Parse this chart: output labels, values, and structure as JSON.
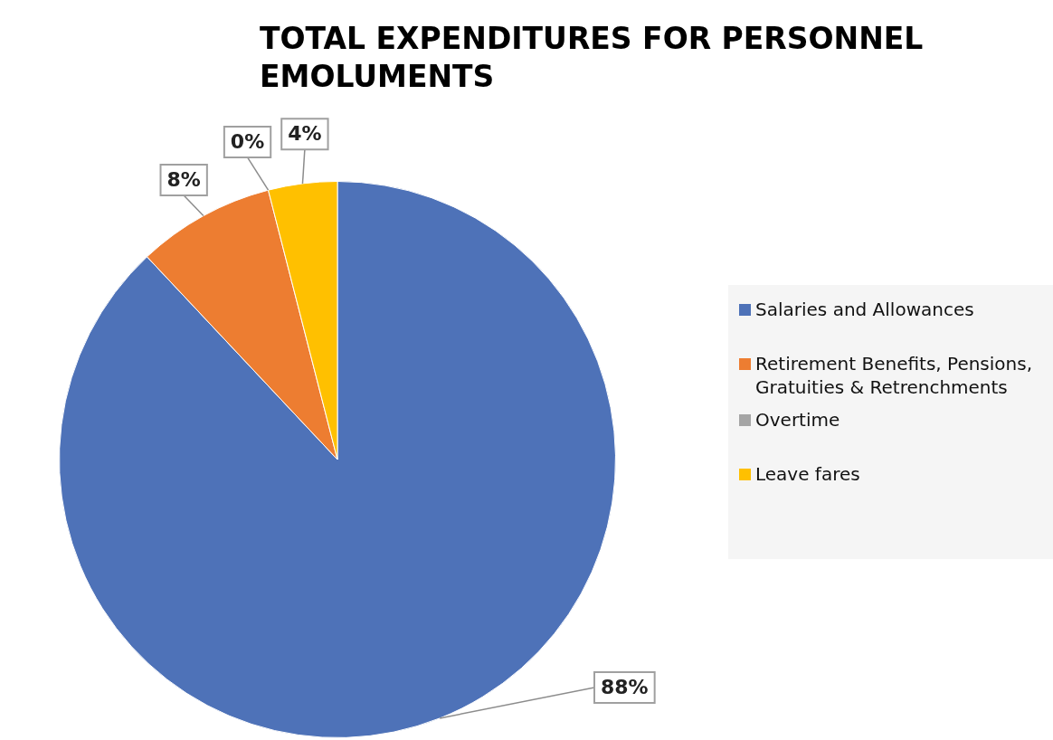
{
  "chart_data": {
    "type": "pie",
    "title": "TOTAL EXPENDITURES FOR PERSONNEL EMOLUMENTS",
    "categories": [
      "Salaries and Allowances",
      "Retirement Benefits, Pensions, Gratuities & Retrenchments",
      "Overtime",
      "Leave fares"
    ],
    "values": [
      88,
      8,
      0,
      4
    ],
    "colors": [
      "#4e72b8",
      "#ed7d31",
      "#a5a5a5",
      "#ffc000"
    ],
    "value_labels": [
      "88%",
      "8%",
      "0%",
      "4%"
    ],
    "legend": "right"
  }
}
